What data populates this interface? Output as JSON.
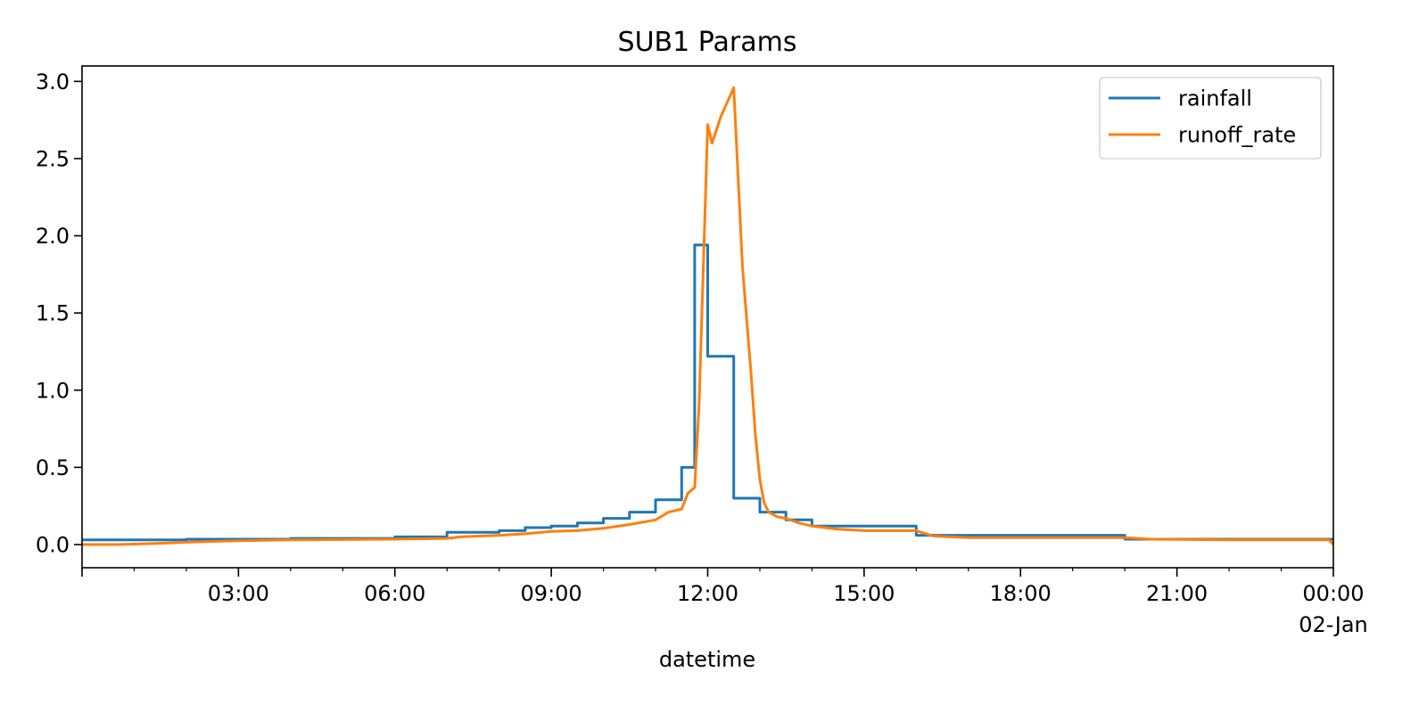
{
  "chart_data": {
    "type": "line",
    "title": "SUB1 Params",
    "xlabel": "datetime",
    "ylabel": "",
    "xlim": [
      "2000-01-01T00:00",
      "2000-01-02T00:00"
    ],
    "ylim": [
      -0.15,
      3.1
    ],
    "grid": false,
    "legend_position": "top-right",
    "x_ticks": [
      {
        "time": "2000-01-01T03:00",
        "label": "03:00"
      },
      {
        "time": "2000-01-01T06:00",
        "label": "06:00"
      },
      {
        "time": "2000-01-01T09:00",
        "label": "09:00"
      },
      {
        "time": "2000-01-01T12:00",
        "label": "12:00"
      },
      {
        "time": "2000-01-01T15:00",
        "label": "15:00"
      },
      {
        "time": "2000-01-01T18:00",
        "label": "18:00"
      },
      {
        "time": "2000-01-01T21:00",
        "label": "21:00"
      },
      {
        "time": "2000-01-02T00:00",
        "label": "00:00",
        "sublabel": "02-Jan"
      }
    ],
    "y_ticks": [
      0.0,
      0.5,
      1.0,
      1.5,
      2.0,
      2.5,
      3.0
    ],
    "y_tick_labels": [
      "0.0",
      "0.5",
      "1.0",
      "1.5",
      "2.0",
      "2.5",
      "3.0"
    ],
    "series": [
      {
        "name": "rainfall",
        "color": "#1f77b4",
        "step": true,
        "x": [
          "2000-01-01T00:00",
          "2000-01-01T02:00",
          "2000-01-01T04:00",
          "2000-01-01T06:00",
          "2000-01-01T07:00",
          "2000-01-01T08:00",
          "2000-01-01T08:30",
          "2000-01-01T09:00",
          "2000-01-01T09:30",
          "2000-01-01T10:00",
          "2000-01-01T10:30",
          "2000-01-01T11:00",
          "2000-01-01T11:30",
          "2000-01-01T11:45",
          "2000-01-01T12:00",
          "2000-01-01T12:30",
          "2000-01-01T13:00",
          "2000-01-01T13:30",
          "2000-01-01T14:00",
          "2000-01-01T16:00",
          "2000-01-01T20:00",
          "2000-01-02T00:00"
        ],
        "values": [
          0.03,
          0.035,
          0.04,
          0.05,
          0.08,
          0.09,
          0.11,
          0.12,
          0.14,
          0.17,
          0.21,
          0.29,
          0.5,
          1.94,
          1.22,
          0.3,
          0.21,
          0.16,
          0.12,
          0.06,
          0.035,
          0.035
        ]
      },
      {
        "name": "runoff_rate",
        "color": "#ff7f0e",
        "step": false,
        "x": [
          "2000-01-01T00:00",
          "2000-01-01T00:40",
          "2000-01-01T01:30",
          "2000-01-01T02:00",
          "2000-01-01T03:00",
          "2000-01-01T04:00",
          "2000-01-01T06:00",
          "2000-01-01T07:00",
          "2000-01-01T07:15",
          "2000-01-01T08:00",
          "2000-01-01T08:30",
          "2000-01-01T09:00",
          "2000-01-01T09:30",
          "2000-01-01T10:00",
          "2000-01-01T10:30",
          "2000-01-01T11:00",
          "2000-01-01T11:15",
          "2000-01-01T11:30",
          "2000-01-01T11:37",
          "2000-01-01T11:45",
          "2000-01-01T11:50",
          "2000-01-01T11:55",
          "2000-01-01T12:00",
          "2000-01-01T12:05",
          "2000-01-01T12:15",
          "2000-01-01T12:30",
          "2000-01-01T12:40",
          "2000-01-01T12:50",
          "2000-01-01T12:55",
          "2000-01-01T13:00",
          "2000-01-01T13:05",
          "2000-01-01T13:10",
          "2000-01-01T13:20",
          "2000-01-01T13:30",
          "2000-01-01T13:45",
          "2000-01-01T14:00",
          "2000-01-01T14:30",
          "2000-01-01T15:00",
          "2000-01-01T16:00",
          "2000-01-01T16:20",
          "2000-01-01T17:00",
          "2000-01-01T18:00",
          "2000-01-01T20:00",
          "2000-01-01T20:30",
          "2000-01-01T22:00",
          "2000-01-01T23:55",
          "2000-01-02T00:00"
        ],
        "values": [
          0.0,
          0.0,
          0.008,
          0.015,
          0.025,
          0.03,
          0.035,
          0.04,
          0.05,
          0.06,
          0.07,
          0.085,
          0.09,
          0.105,
          0.13,
          0.16,
          0.21,
          0.23,
          0.33,
          0.37,
          0.9,
          1.8,
          2.72,
          2.6,
          2.77,
          2.96,
          1.8,
          1.1,
          0.7,
          0.42,
          0.27,
          0.21,
          0.18,
          0.17,
          0.14,
          0.12,
          0.1,
          0.09,
          0.09,
          0.055,
          0.045,
          0.045,
          0.045,
          0.035,
          0.03,
          0.03,
          0.0
        ]
      }
    ]
  }
}
